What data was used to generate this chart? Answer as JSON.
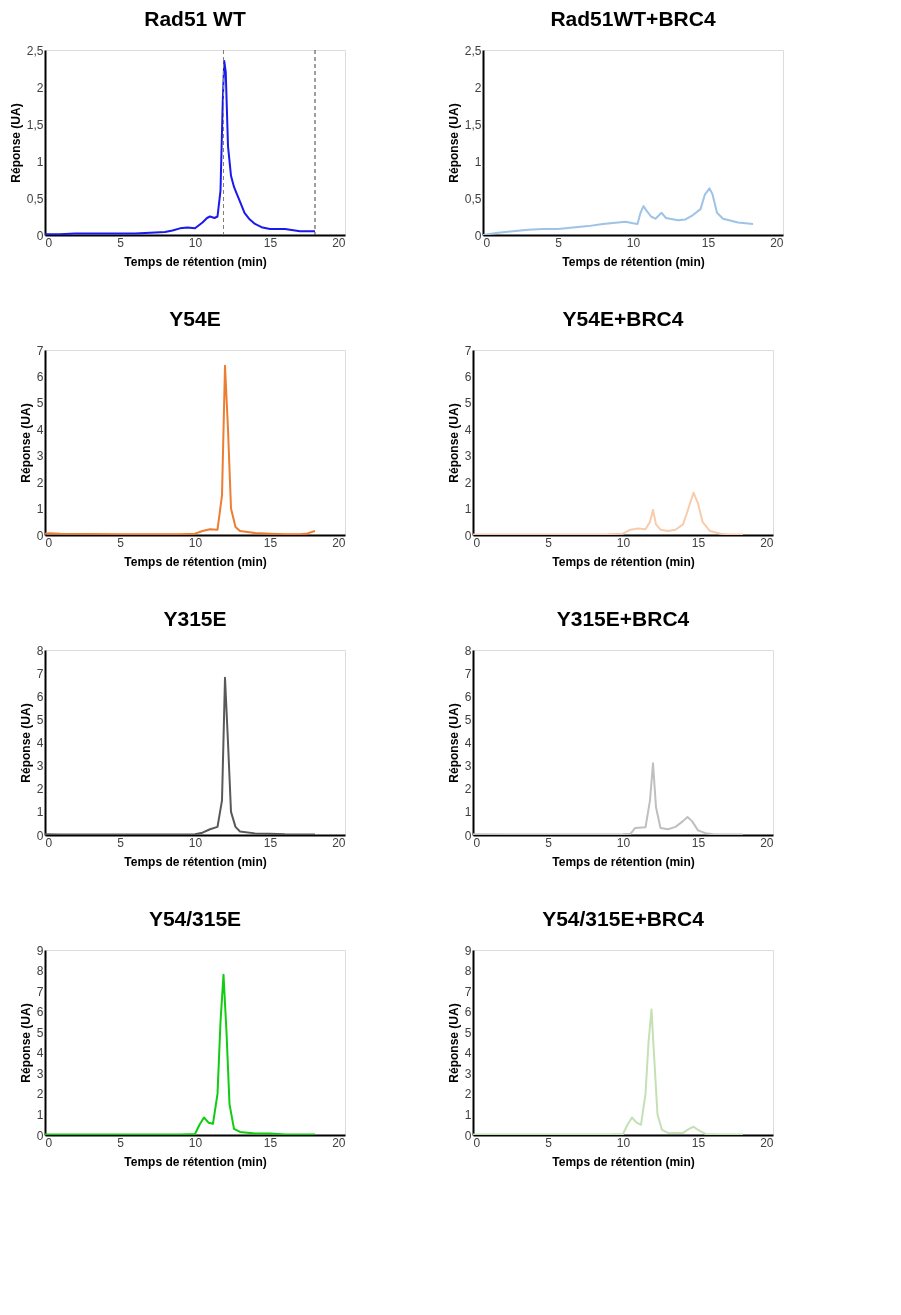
{
  "chart_data": [
    {
      "type": "line",
      "title": "Rad51 WT",
      "xlabel": "Temps de rétention (min)",
      "ylabel": "Réponse (UA)",
      "xlim": [
        0,
        20
      ],
      "xticks": [
        0,
        5,
        10,
        15,
        20
      ],
      "ylim": [
        0,
        2.5
      ],
      "yticks": [
        0,
        {
          "value": 0.5,
          "label": "0,5"
        },
        1,
        {
          "value": 1.5,
          "label": "1,5"
        },
        2,
        {
          "value": 2.5,
          "label": "2,5"
        }
      ],
      "series": [
        {
          "color": "#1a1aee",
          "x": [
            0,
            1,
            2,
            3,
            4,
            5,
            6,
            7,
            8,
            8.5,
            9,
            9.5,
            10,
            10.5,
            10.8,
            11,
            11.3,
            11.5,
            11.7,
            11.85,
            11.95,
            12.05,
            12.2,
            12.4,
            12.6,
            12.8,
            13,
            13.3,
            13.6,
            14,
            14.5,
            15,
            16,
            17,
            18
          ],
          "values": [
            0.01,
            0.01,
            0.02,
            0.02,
            0.02,
            0.02,
            0.02,
            0.03,
            0.04,
            0.06,
            0.09,
            0.1,
            0.09,
            0.17,
            0.23,
            0.25,
            0.23,
            0.25,
            0.6,
            1.8,
            2.35,
            2.2,
            1.2,
            0.8,
            0.65,
            0.55,
            0.45,
            0.3,
            0.22,
            0.15,
            0.1,
            0.08,
            0.08,
            0.05,
            0.05
          ]
        }
      ],
      "ref_lines": [
        {
          "axis": "x",
          "value": 11.9,
          "color": "#7f7f7f",
          "line_style": "dashed"
        },
        {
          "axis": "x",
          "value": 18,
          "color": "#404040",
          "line_style": "dashed"
        }
      ]
    },
    {
      "type": "line",
      "title": "Rad51WT+BRC4",
      "xlabel": "Temps de rétention (min)",
      "ylabel": "Réponse (UA)",
      "xlim": [
        0,
        20
      ],
      "xticks": [
        0,
        5,
        10,
        15,
        20
      ],
      "ylim": [
        0,
        2.5
      ],
      "yticks": [
        0,
        {
          "value": 0.5,
          "label": "0,5"
        },
        1,
        {
          "value": 1.5,
          "label": "1,5"
        },
        2,
        {
          "value": 2.5,
          "label": "2,5"
        }
      ],
      "series": [
        {
          "color": "#9dc3e6",
          "x": [
            0,
            1,
            2,
            3,
            4,
            5,
            6,
            7,
            8,
            9,
            9.5,
            10,
            10.3,
            10.5,
            10.7,
            10.9,
            11.2,
            11.5,
            11.9,
            12.2,
            13,
            13.5,
            14,
            14.5,
            14.8,
            15.1,
            15.3,
            15.6,
            16,
            17,
            18
          ],
          "values": [
            0,
            0.03,
            0.05,
            0.07,
            0.08,
            0.08,
            0.1,
            0.12,
            0.15,
            0.17,
            0.18,
            0.16,
            0.15,
            0.3,
            0.39,
            0.33,
            0.25,
            0.22,
            0.3,
            0.23,
            0.2,
            0.21,
            0.27,
            0.35,
            0.55,
            0.63,
            0.55,
            0.3,
            0.22,
            0.17,
            0.15
          ]
        }
      ]
    },
    {
      "type": "line",
      "title": "Y54E",
      "xlabel": "Temps de rétention (min)",
      "ylabel": "Réponse (UA)",
      "xlim": [
        0,
        20
      ],
      "xticks": [
        0,
        5,
        10,
        15,
        20
      ],
      "ylim": [
        0,
        7
      ],
      "yticks": [
        0,
        1,
        2,
        3,
        4,
        5,
        6,
        7
      ],
      "series": [
        {
          "color": "#ed7d31",
          "x": [
            0,
            0.3,
            1,
            5,
            9,
            10,
            10.5,
            11,
            11.5,
            11.8,
            12,
            12.2,
            12.4,
            12.7,
            13,
            14,
            15,
            16,
            17,
            17.5,
            18
          ],
          "values": [
            0.05,
            0.07,
            0.05,
            0.03,
            0.03,
            0.05,
            0.15,
            0.22,
            0.2,
            1.5,
            6.4,
            4,
            1,
            0.3,
            0.15,
            0.08,
            0.05,
            0.03,
            0.03,
            0.06,
            0.15
          ]
        }
      ]
    },
    {
      "type": "line",
      "title": "Y54E+BRC4",
      "xlabel": "Temps de rétention (min)",
      "ylabel": "Réponse (UA)",
      "xlim": [
        0,
        20
      ],
      "xticks": [
        0,
        5,
        10,
        15,
        20
      ],
      "ylim": [
        0,
        7
      ],
      "yticks": [
        0,
        1,
        2,
        3,
        4,
        5,
        6,
        7
      ],
      "series": [
        {
          "color": "#f8cbad",
          "x": [
            0,
            5,
            9,
            10,
            10.5,
            11,
            11.5,
            11.8,
            12,
            12.2,
            12.5,
            13,
            13.5,
            14,
            14.3,
            14.7,
            15,
            15.3,
            15.8,
            16.5,
            17,
            18
          ],
          "values": [
            0.02,
            0.02,
            0.03,
            0.05,
            0.2,
            0.25,
            0.22,
            0.5,
            0.95,
            0.4,
            0.2,
            0.15,
            0.2,
            0.4,
            0.9,
            1.6,
            1.2,
            0.5,
            0.15,
            0.05,
            0.02,
            0.02
          ]
        }
      ]
    },
    {
      "type": "line",
      "title": "Y315E",
      "xlabel": "Temps de rétention (min)",
      "ylabel": "Réponse (UA)",
      "xlim": [
        0,
        20
      ],
      "xticks": [
        0,
        5,
        10,
        15,
        20
      ],
      "ylim": [
        0,
        8
      ],
      "yticks": [
        0,
        1,
        2,
        3,
        4,
        5,
        6,
        7,
        8
      ],
      "series": [
        {
          "color": "#595959",
          "x": [
            0,
            1,
            5,
            9,
            10,
            10.5,
            11,
            11.5,
            11.8,
            12,
            12.2,
            12.4,
            12.7,
            13,
            14,
            15,
            16,
            18
          ],
          "values": [
            0.03,
            0.02,
            0.02,
            0.02,
            0.03,
            0.1,
            0.25,
            0.35,
            1.5,
            6.8,
            4,
            1,
            0.35,
            0.15,
            0.07,
            0.05,
            0.03,
            0.02
          ]
        }
      ]
    },
    {
      "type": "line",
      "title": "Y315E+BRC4",
      "xlabel": "Temps de rétention (min)",
      "ylabel": "Réponse (UA)",
      "xlim": [
        0,
        20
      ],
      "xticks": [
        0,
        5,
        10,
        15,
        20
      ],
      "ylim": [
        0,
        8
      ],
      "yticks": [
        0,
        1,
        2,
        3,
        4,
        5,
        6,
        7,
        8
      ],
      "series": [
        {
          "color": "#bfbfbf",
          "x": [
            0,
            5,
            9,
            10,
            10.5,
            10.8,
            11.5,
            11.8,
            12,
            12.2,
            12.5,
            13,
            13.5,
            14,
            14.3,
            14.6,
            15,
            15.5,
            16,
            18
          ],
          "values": [
            0.03,
            0.02,
            0.02,
            0.03,
            0.05,
            0.3,
            0.33,
            1.5,
            3.1,
            1.2,
            0.3,
            0.25,
            0.35,
            0.6,
            0.78,
            0.6,
            0.2,
            0.08,
            0.03,
            0.02
          ]
        }
      ]
    },
    {
      "type": "line",
      "title": "Y54/315E",
      "xlabel": "Temps de rétention (min)",
      "ylabel": "Réponse (UA)",
      "xlim": [
        0,
        20
      ],
      "xticks": [
        0,
        5,
        10,
        15,
        20
      ],
      "ylim": [
        0,
        9
      ],
      "yticks": [
        0,
        1,
        2,
        3,
        4,
        5,
        6,
        7,
        8,
        9
      ],
      "series": [
        {
          "color": "#11cc11",
          "x": [
            0,
            5,
            9,
            10,
            10.3,
            10.6,
            10.9,
            11.2,
            11.5,
            11.7,
            11.9,
            12.1,
            12.3,
            12.6,
            13,
            14,
            15,
            16,
            18
          ],
          "values": [
            0.02,
            0.02,
            0.02,
            0.05,
            0.5,
            0.85,
            0.6,
            0.55,
            2,
            5.5,
            7.8,
            5,
            1.5,
            0.3,
            0.15,
            0.07,
            0.07,
            0.03,
            0.02
          ]
        }
      ]
    },
    {
      "type": "line",
      "title": "Y54/315E+BRC4",
      "xlabel": "Temps de rétention (min)",
      "ylabel": "Réponse (UA)",
      "xlim": [
        0,
        20
      ],
      "xticks": [
        0,
        5,
        10,
        15,
        20
      ],
      "ylim": [
        0,
        9
      ],
      "yticks": [
        0,
        1,
        2,
        3,
        4,
        5,
        6,
        7,
        8,
        9
      ],
      "series": [
        {
          "color": "#c5e0b4",
          "x": [
            0,
            5,
            9,
            10,
            10.3,
            10.6,
            10.9,
            11.2,
            11.5,
            11.7,
            11.9,
            12.1,
            12.3,
            12.6,
            13,
            14,
            14.4,
            14.7,
            15,
            15.5,
            16.5,
            18
          ],
          "values": [
            0.03,
            0.03,
            0.03,
            0.05,
            0.5,
            0.85,
            0.6,
            0.5,
            2,
            4.5,
            6.1,
            3.5,
            1,
            0.25,
            0.1,
            0.1,
            0.3,
            0.4,
            0.25,
            0.05,
            0.02,
            0.02
          ]
        }
      ]
    }
  ]
}
